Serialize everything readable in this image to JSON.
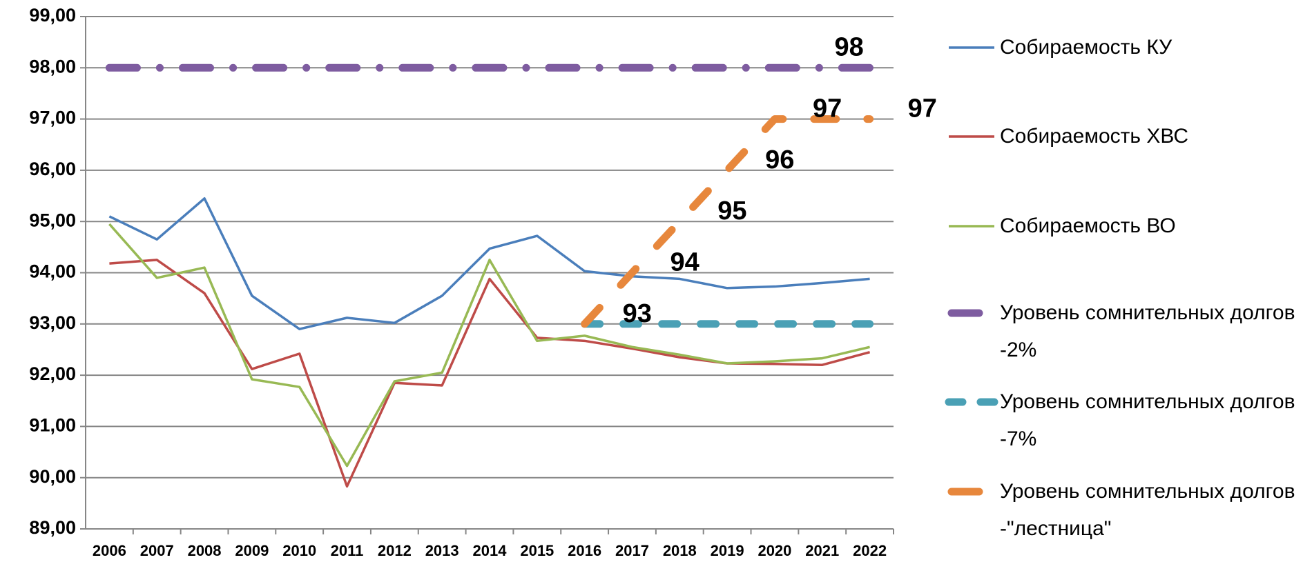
{
  "chart_data": {
    "type": "line",
    "categories": [
      "2006",
      "2007",
      "2008",
      "2009",
      "2010",
      "2011",
      "2012",
      "2013",
      "2014",
      "2015",
      "2016",
      "2017",
      "2018",
      "2019",
      "2020",
      "2021",
      "2022"
    ],
    "ylim": [
      89,
      99
    ],
    "yticks": [
      {
        "value": 89,
        "label": "89,00"
      },
      {
        "value": 90,
        "label": "90,00"
      },
      {
        "value": 91,
        "label": "91,00"
      },
      {
        "value": 92,
        "label": "92,00"
      },
      {
        "value": 93,
        "label": "93,00"
      },
      {
        "value": 94,
        "label": "94,00"
      },
      {
        "value": 95,
        "label": "95,00"
      },
      {
        "value": 96,
        "label": "96,00"
      },
      {
        "value": 97,
        "label": "97,00"
      },
      {
        "value": 98,
        "label": "98,00"
      },
      {
        "value": 99,
        "label": "99,00"
      }
    ],
    "grid": true,
    "legend": "right",
    "series": [
      {
        "name": "Собираемость КУ",
        "color": "#4a7ebb",
        "dash": "solid",
        "values": [
          95.1,
          94.65,
          95.45,
          93.55,
          92.9,
          93.12,
          93.02,
          93.55,
          94.47,
          94.72,
          94.03,
          93.93,
          93.88,
          93.7,
          93.73,
          93.8,
          93.88
        ]
      },
      {
        "name": "Собираемость ХВС",
        "color": "#be4b48",
        "dash": "solid",
        "values": [
          94.18,
          94.25,
          93.6,
          92.12,
          92.42,
          89.83,
          91.85,
          91.8,
          93.88,
          92.73,
          92.67,
          92.52,
          92.35,
          92.23,
          92.22,
          92.2,
          92.45
        ]
      },
      {
        "name": "Собираемость ВО",
        "color": "#98b954",
        "dash": "solid",
        "values": [
          94.95,
          93.9,
          94.1,
          91.92,
          91.77,
          90.23,
          91.88,
          92.05,
          94.25,
          92.67,
          92.77,
          92.55,
          92.4,
          92.23,
          92.27,
          92.33,
          92.55
        ]
      },
      {
        "name": "Уровень сомнительных долгов -2%",
        "color": "#7e5ca0",
        "dash": "dashdot",
        "label_position": "above",
        "values": [
          98,
          98,
          98,
          98,
          98,
          98,
          98,
          98,
          98,
          98,
          98,
          98,
          98,
          98,
          98,
          98,
          98
        ],
        "value_labels": [
          null,
          null,
          null,
          null,
          null,
          null,
          null,
          null,
          null,
          null,
          null,
          null,
          null,
          null,
          null,
          null,
          "98"
        ]
      },
      {
        "name": "Уровень сомнительных долгов -7%",
        "color": "#4aa0b5",
        "dash": "dash",
        "values": [
          null,
          null,
          null,
          null,
          null,
          null,
          null,
          null,
          null,
          null,
          93,
          93,
          93,
          93,
          93,
          93,
          93
        ]
      },
      {
        "name": "Уровень сомнительных долгов -\"лестница\"",
        "color": "#e7873c",
        "dash": "longdash",
        "label_position": "right",
        "values": [
          null,
          null,
          null,
          null,
          null,
          null,
          null,
          null,
          null,
          null,
          93,
          94,
          95,
          96,
          97,
          97,
          97
        ],
        "value_labels": [
          null,
          null,
          null,
          null,
          null,
          null,
          null,
          null,
          null,
          null,
          "93",
          "94",
          "95",
          "96",
          "97",
          null,
          "97"
        ]
      }
    ]
  }
}
